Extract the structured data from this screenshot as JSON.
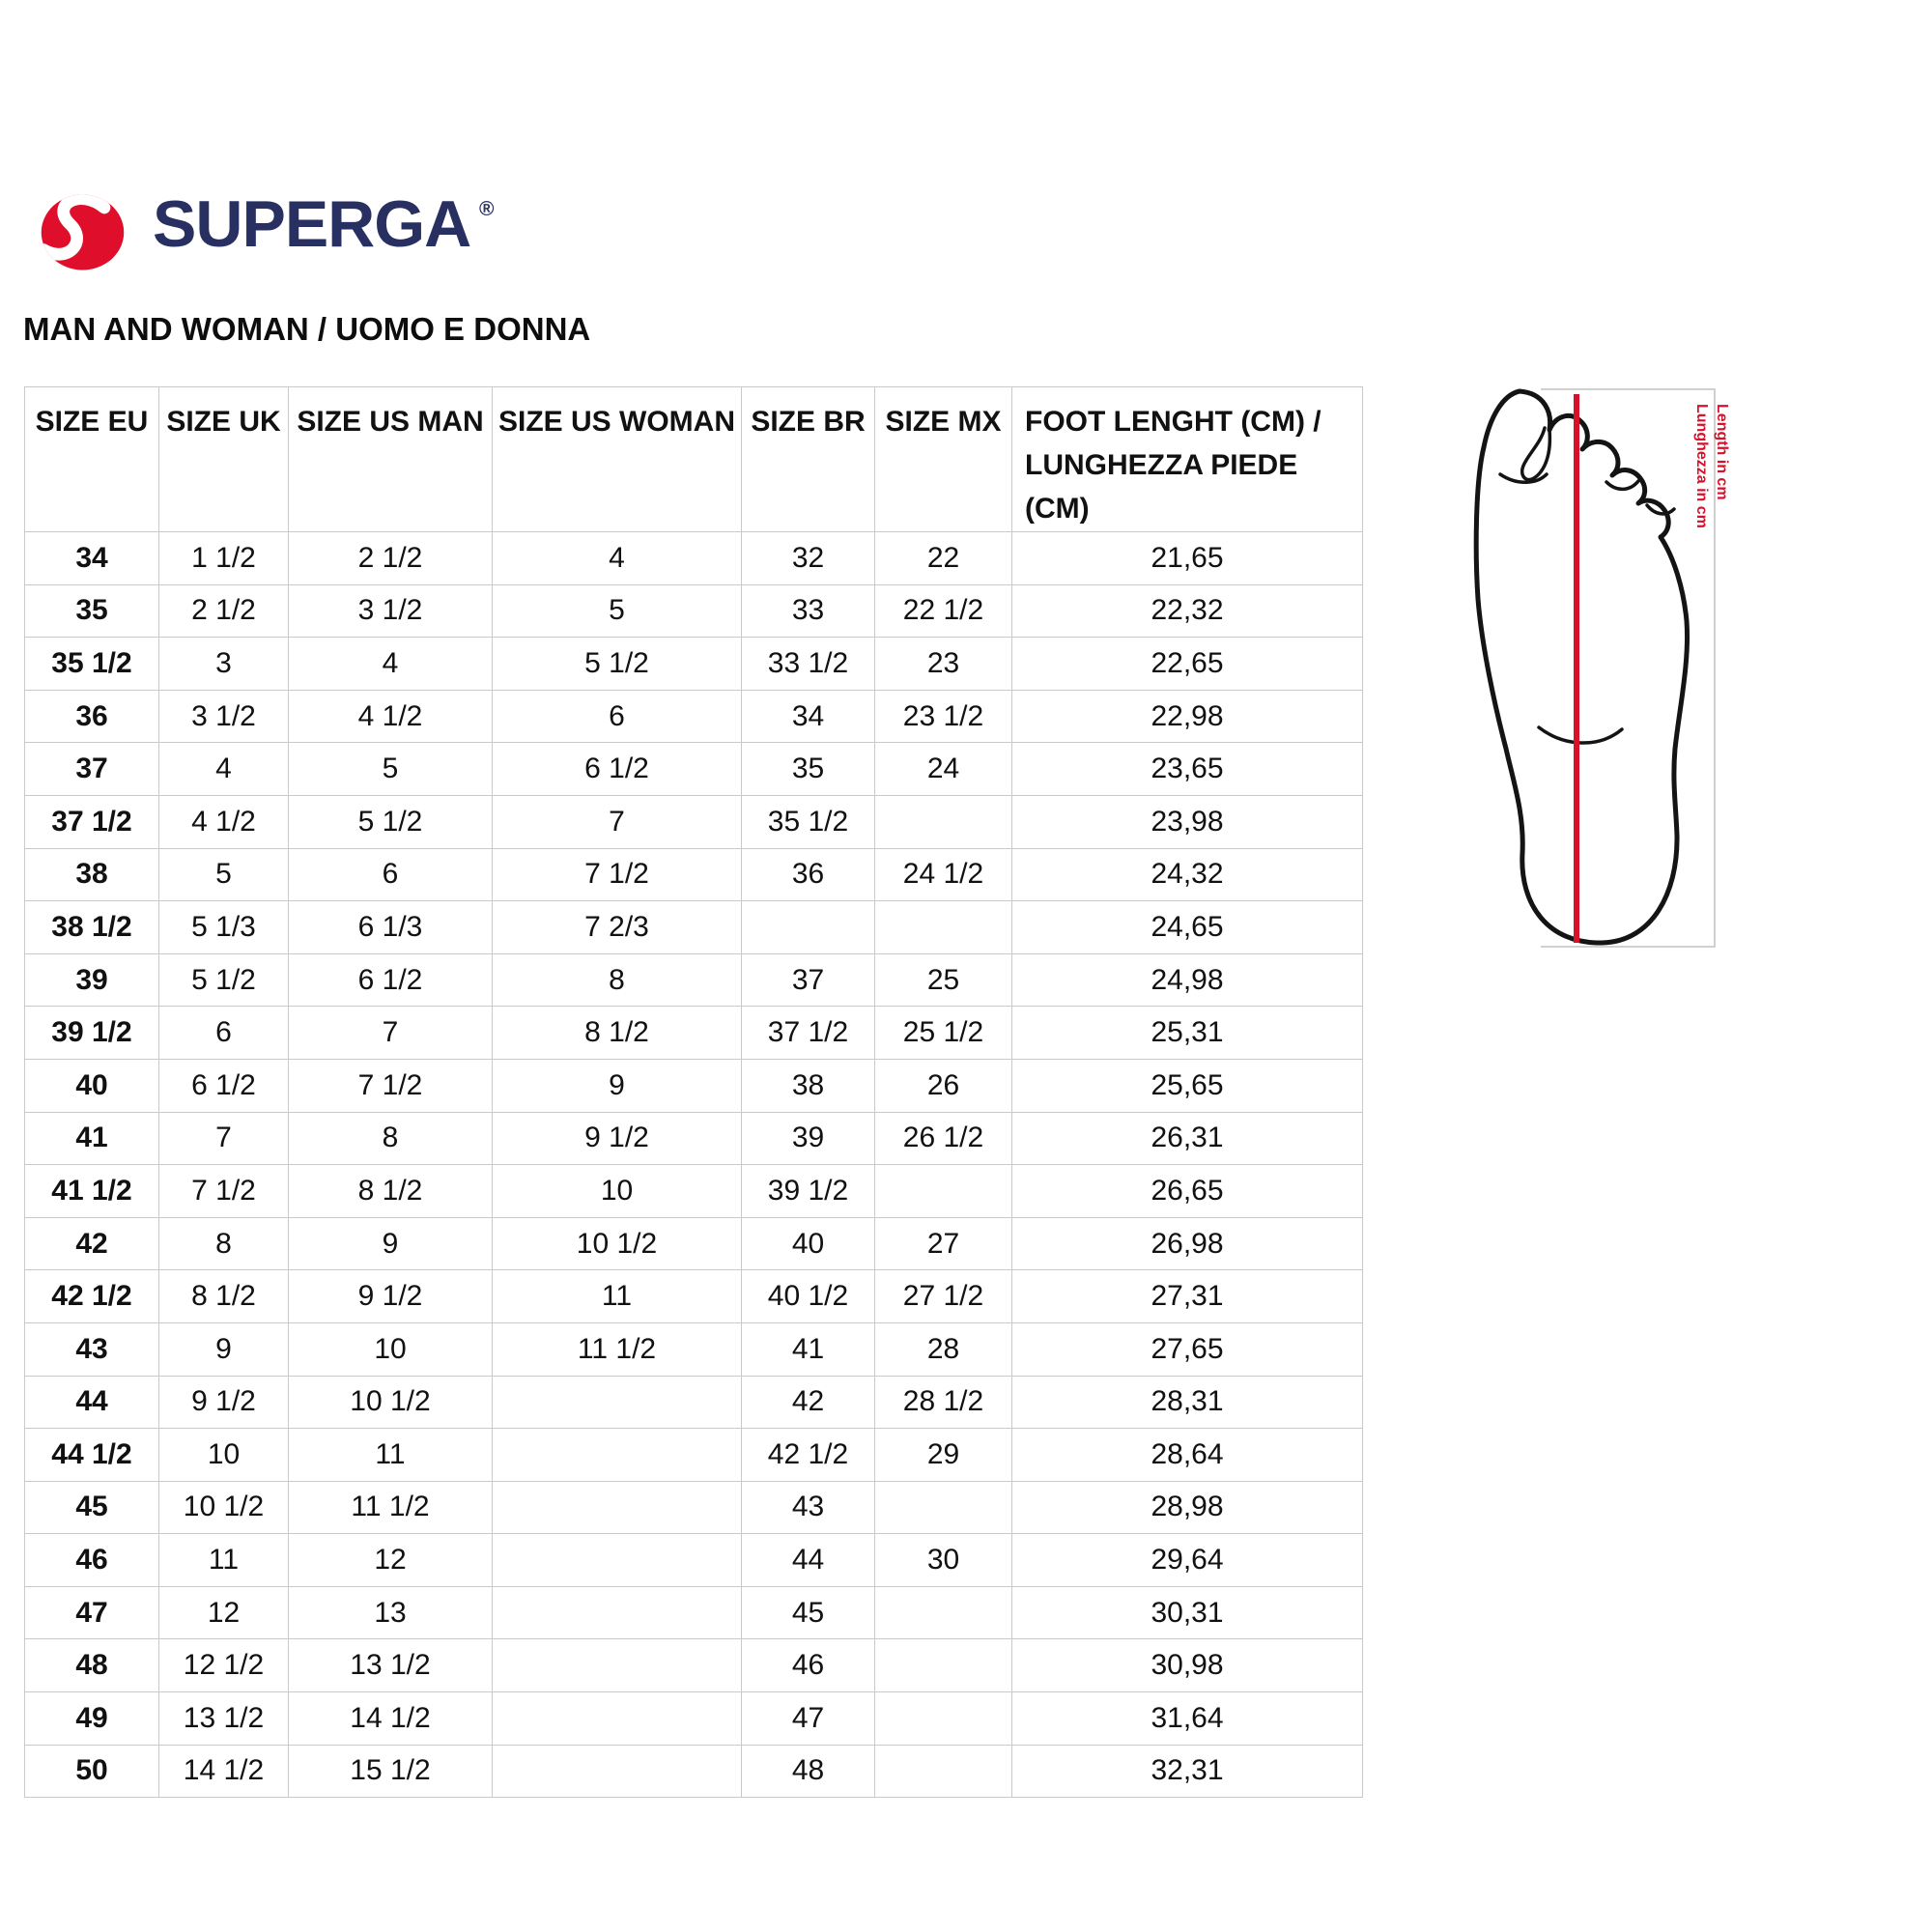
{
  "brand": {
    "name": "SUPERGA",
    "registered": "®"
  },
  "heading": "MAN AND WOMAN / UOMO E DONNA",
  "size_table": {
    "headers": [
      "SIZE EU",
      "SIZE UK",
      "SIZE US MAN",
      "SIZE US WOMAN",
      "SIZE BR",
      "SIZE MX",
      "FOOT LENGHT (CM) /\nLUNGHEZZA PIEDE (CM)"
    ],
    "rows": [
      [
        "34",
        "1 1/2",
        "2 1/2",
        "4",
        "32",
        "22",
        "21,65"
      ],
      [
        "35",
        "2 1/2",
        "3 1/2",
        "5",
        "33",
        "22 1/2",
        "22,32"
      ],
      [
        "35 1/2",
        "3",
        "4",
        "5 1/2",
        "33 1/2",
        "23",
        "22,65"
      ],
      [
        "36",
        "3 1/2",
        "4 1/2",
        "6",
        "34",
        "23 1/2",
        "22,98"
      ],
      [
        "37",
        "4",
        "5",
        "6 1/2",
        "35",
        "24",
        "23,65"
      ],
      [
        "37 1/2",
        "4 1/2",
        "5 1/2",
        "7",
        "35 1/2",
        "",
        "23,98"
      ],
      [
        "38",
        "5",
        "6",
        "7 1/2",
        "36",
        "24 1/2",
        "24,32"
      ],
      [
        "38 1/2",
        "5 1/3",
        "6 1/3",
        "7 2/3",
        "",
        "",
        "24,65"
      ],
      [
        "39",
        "5 1/2",
        "6 1/2",
        "8",
        "37",
        "25",
        "24,98"
      ],
      [
        "39 1/2",
        "6",
        "7",
        "8 1/2",
        "37 1/2",
        "25 1/2",
        "25,31"
      ],
      [
        "40",
        "6 1/2",
        "7 1/2",
        "9",
        "38",
        "26",
        "25,65"
      ],
      [
        "41",
        "7",
        "8",
        "9 1/2",
        "39",
        "26 1/2",
        "26,31"
      ],
      [
        "41 1/2",
        "7 1/2",
        "8 1/2",
        "10",
        "39 1/2",
        "",
        "26,65"
      ],
      [
        "42",
        "8",
        "9",
        "10 1/2",
        "40",
        "27",
        "26,98"
      ],
      [
        "42 1/2",
        "8 1/2",
        "9 1/2",
        "11",
        "40 1/2",
        "27 1/2",
        "27,31"
      ],
      [
        "43",
        "9",
        "10",
        "11 1/2",
        "41",
        "28",
        "27,65"
      ],
      [
        "44",
        "9 1/2",
        "10 1/2",
        "",
        "42",
        "28 1/2",
        "28,31"
      ],
      [
        "44 1/2",
        "10",
        "11",
        "",
        "42 1/2",
        "29",
        "28,64"
      ],
      [
        "45",
        "10 1/2",
        "11 1/2",
        "",
        "43",
        "",
        "28,98"
      ],
      [
        "46",
        "11",
        "12",
        "",
        "44",
        "30",
        "29,64"
      ],
      [
        "47",
        "12",
        "13",
        "",
        "45",
        "",
        "30,31"
      ],
      [
        "48",
        "12 1/2",
        "13 1/2",
        "",
        "46",
        "",
        "30,98"
      ],
      [
        "49",
        "13 1/2",
        "14 1/2",
        "",
        "47",
        "",
        "31,64"
      ],
      [
        "50",
        "14 1/2",
        "15 1/2",
        "",
        "48",
        "",
        "32,31"
      ]
    ]
  },
  "foot_diagram": {
    "label_en": "Length in cm",
    "label_it": "Lunghezza in cm"
  },
  "colors": {
    "brand_red": "#df0f2c",
    "brand_navy": "#273060",
    "measure_red": "#d6122b",
    "table_border": "#c9c9c9",
    "text": "#111111"
  }
}
